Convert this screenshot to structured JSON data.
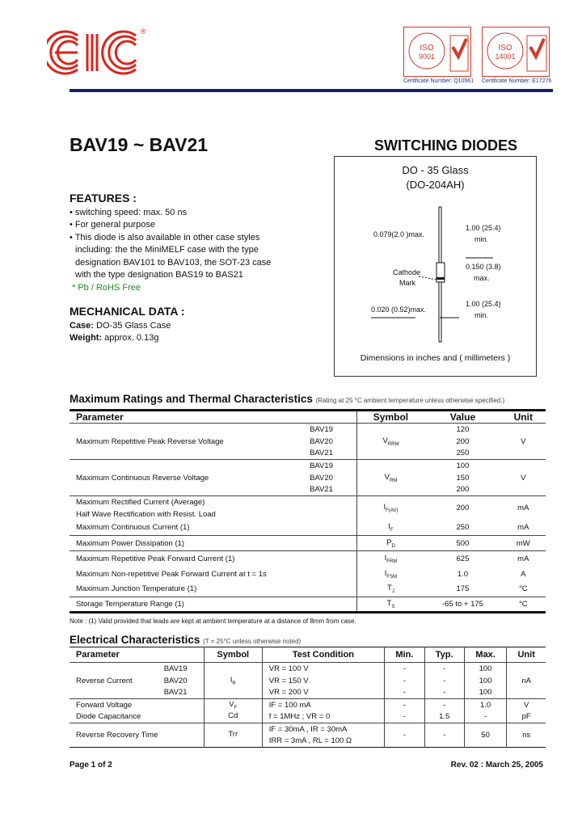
{
  "header": {
    "logo_text": "EIC",
    "registered": "®",
    "cert1": {
      "iso": "ISO 9001",
      "number": "Certificate Number: Q10561"
    },
    "cert2": {
      "iso": "ISO 14001",
      "number": "Certificate Number: E17276"
    }
  },
  "title": "BAV19 ~ BAV21",
  "subtitle": "SWITCHING DIODES",
  "package": {
    "name": "DO - 35 Glass",
    "alt": "(DO-204AH)",
    "dim_lead_dia": "0.079(2.0 )max.",
    "dim_lead_len_top": "1.00 (25.4)",
    "min": "min.",
    "dim_body": "0.150 (3.8)",
    "max": "max.",
    "cathode": "Cathode",
    "mark": "Mark",
    "dim_wire": "0.020 (0.52)max.",
    "dim_lead_len_bottom": "1.00 (25.4)",
    "caption": "Dimensions in inches and ( millimeters )"
  },
  "features": {
    "heading": "FEATURES :",
    "items": [
      "• switching speed: max. 50 ns",
      "• For general purpose",
      "• This diode is also available in other case styles",
      "including: the  the MiniMELF case with the type",
      "designation BAV101 to BAV103, the SOT-23 case",
      "with the type designation BAS19 to BAS21"
    ],
    "pb_free": "*  Pb / RoHS Free"
  },
  "mechanical": {
    "heading": "MECHANICAL  DATA :",
    "case_label": "Case:",
    "case_value": " DO-35 Glass Case",
    "weight_label": "Weight:",
    "weight_value": " approx. 0.13g"
  },
  "ratings": {
    "heading": "Maximum Ratings and Thermal Characteristics",
    "condition": "(Rating at 25 °C ambient temperature unless otherwise specified.)",
    "headers": [
      "Parameter",
      "Symbol",
      "Value",
      "Unit"
    ],
    "rows": [
      {
        "param": "Maximum Repetitive Peak Reverse Voltage",
        "types": [
          "BAV19",
          "BAV20",
          "BAV21"
        ],
        "symbol": "V",
        "sub": "RRM",
        "values": [
          "120",
          "200",
          "250"
        ],
        "unit": "V"
      },
      {
        "param": "Maximum Continuous Reverse Voltage",
        "types": [
          "BAV19",
          "BAV20",
          "BAV21"
        ],
        "symbol": "V",
        "sub": "RM",
        "values": [
          "100",
          "150",
          "200"
        ],
        "unit": "V"
      },
      {
        "param": "Maximum Rectified Current (Average)",
        "param2": "Half Wave Rectification with Resist. Load",
        "symbol": "I",
        "sub": "F(AV)",
        "value": "200",
        "unit": "mA"
      },
      {
        "param": "Maximum Continuous Current (1)",
        "symbol": "I",
        "sub": "F",
        "value": "250",
        "unit": "mA"
      },
      {
        "param": "Maximum Power Dissipation (1)",
        "symbol": "P",
        "sub": "D",
        "value": "500",
        "unit": "mW"
      },
      {
        "param": "Maximum Repetitive Peak Forward Current (1)",
        "symbol": "I",
        "sub": "FRM",
        "value": "625",
        "unit": "mA"
      },
      {
        "param": "Maximum Non-repetitive Peak Forward Current at t = 1s",
        "symbol": "I",
        "sub": "FSM",
        "value": "1.0",
        "unit": "A"
      },
      {
        "param": "Maximum Junction Temperature (1)",
        "symbol": "T",
        "sub": "J",
        "value": "175",
        "unit": "°C"
      },
      {
        "param": "Storage Temperature Range (1)",
        "symbol": "T",
        "sub": "S",
        "value": "-65 to + 175",
        "unit": "°C"
      }
    ],
    "note": "Note : (1) Valid provided that leads are kept at ambient temperature at a distance of 8mm from case."
  },
  "electrical": {
    "heading": "Electrical Characteristics",
    "condition": "(T  = 25°C unless otherwise noted)",
    "headers": [
      "Parameter",
      "Symbol",
      "Test Condition",
      "Min.",
      "Typ.",
      "Max.",
      "Unit"
    ],
    "rows": [
      {
        "param": "Reverse Current",
        "types": [
          "BAV19",
          "BAV20",
          "BAV21"
        ],
        "symbol": "I",
        "sub": "R",
        "conditions": [
          "VR = 100 V",
          "VR = 150 V",
          "VR = 200 V"
        ],
        "min": [
          "-",
          "-",
          "-"
        ],
        "typ": [
          "-",
          "-",
          "-"
        ],
        "max": [
          "100",
          "100",
          "100"
        ],
        "unit": "nA"
      },
      {
        "param": "Forward Voltage",
        "symbol": "V",
        "sub": "F",
        "condition": "IF = 100 mA",
        "min": "-",
        "typ": "-",
        "max": "1.0",
        "unit": "V"
      },
      {
        "param": "Diode Capacitance",
        "symbol": "Cd",
        "sub": "",
        "condition": "f = 1MHz ; VR = 0",
        "min": "-",
        "typ": "1.5",
        "max": "-",
        "unit": "pF"
      },
      {
        "param": "Reverse Recovery Time",
        "symbol": "Trr",
        "sub": "",
        "condition": "IF = 30mA , IR = 30mA",
        "condition2": "IRR = 3mA , RL = 100 Ω",
        "min": "-",
        "typ": "-",
        "max": "50",
        "unit": "ns"
      }
    ]
  },
  "footer": {
    "page": "Page 1 of 2",
    "revision": "Rev. 02 : March 25, 2005"
  },
  "colors": {
    "logo_red": "#d8251b",
    "rule_navy": "#1a1f6b",
    "pb_green": "#1c8a1c"
  }
}
